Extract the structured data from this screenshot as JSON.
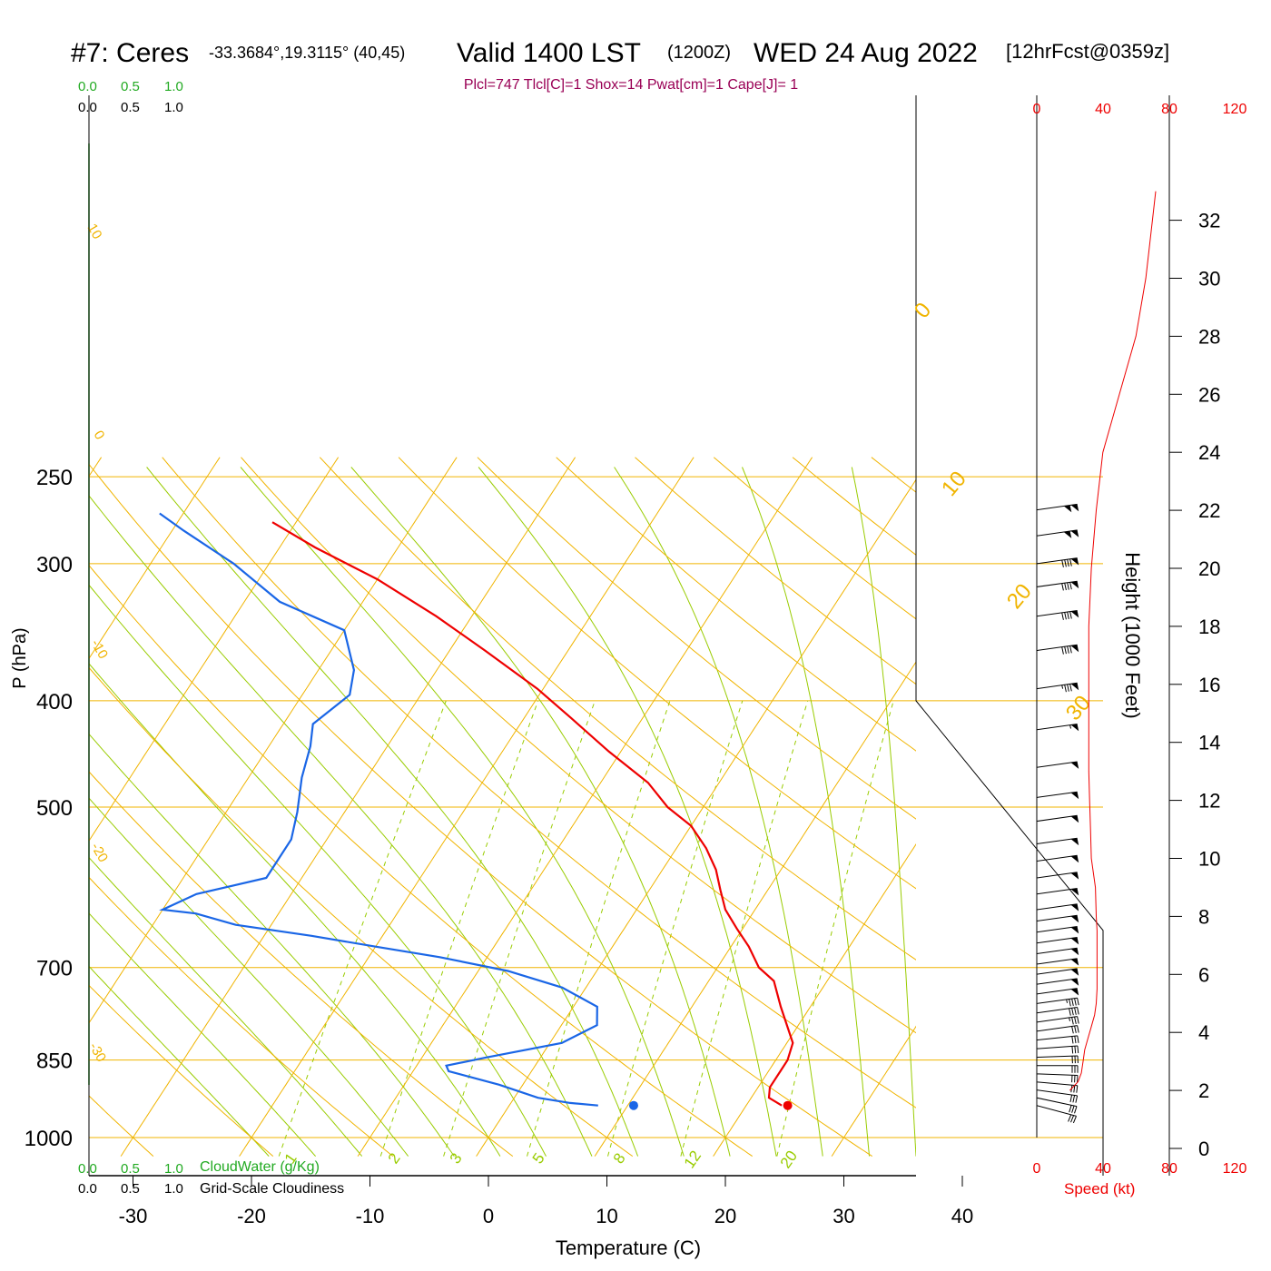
{
  "header": {
    "station": "#7: Ceres",
    "coords": "-33.3684°,19.3115° (40,45)",
    "valid": "Valid 1400 LST",
    "utc": "(1200Z)",
    "date": "WED 24 Aug 2022",
    "forecast": "[12hrFcst@0359z]",
    "indices": "Plcl=747 Tlcl[C]=1 Shox=14 Pwat[cm]=1 Cape[J]= 1"
  },
  "colors": {
    "isotherm": "#f0b400",
    "dry_adiabat": "#f0b400",
    "moist_adiabat": "#99cc00",
    "mixing_ratio": "#99cc00",
    "temperature": "#ee0000",
    "dewpoint": "#1a66e6",
    "cloud": "#22aa22",
    "indices": "#990055",
    "speed": "#ee0000"
  },
  "chart_data": {
    "type": "line",
    "title": "Skew-T log-P sounding",
    "xlabel": "Temperature (C)",
    "ylabel": "P (hPa)",
    "y2label": "Height (1000 Feet)",
    "x_ticks": [
      -30,
      -20,
      -10,
      0,
      10,
      20,
      30,
      40
    ],
    "pressure_ticks": [
      250,
      300,
      400,
      500,
      700,
      850,
      1000
    ],
    "height_ticks": [
      0,
      2,
      4,
      6,
      8,
      10,
      12,
      14,
      16,
      18,
      20,
      22,
      24,
      26,
      28,
      30,
      32
    ],
    "dry_adiabat_labels": [
      "10",
      "0",
      "-10",
      "-20",
      "-30"
    ],
    "theta_labels": [
      "0",
      "10",
      "20",
      "30"
    ],
    "mixing_ratio_labels": [
      "1",
      "2",
      "3",
      "5",
      "8",
      "12",
      "20"
    ],
    "cloud_scale_top_green": [
      "0.0",
      "0.5",
      "1.0"
    ],
    "cloud_scale_top_black": [
      "0.0",
      "0.5",
      "1.0"
    ],
    "cloud_scale_bottom_green": [
      "0.0",
      "0.5",
      "1.0"
    ],
    "cloud_scale_bottom_black": [
      "0.0",
      "0.5",
      "1.0"
    ],
    "cloudwater_label": "CloudWater (g/Kg)",
    "cloudiness_label": "Grid-Scale Cloudiness",
    "speed_ticks_top": [
      "0",
      "40",
      "80",
      "120"
    ],
    "speed_ticks_bottom": [
      "0",
      "40",
      "80",
      "120"
    ],
    "speed_label": "Speed (kt)",
    "series": [
      {
        "name": "temperature",
        "points": [
          [
            23.0,
            935
          ],
          [
            21.5,
            920
          ],
          [
            21.0,
            900
          ],
          [
            21.0,
            870
          ],
          [
            21.0,
            850
          ],
          [
            20.5,
            820
          ],
          [
            17.5,
            760
          ],
          [
            15.5,
            720
          ],
          [
            13.5,
            700
          ],
          [
            11.5,
            670
          ],
          [
            9.5,
            645
          ],
          [
            7.5,
            620
          ],
          [
            6.0,
            595
          ],
          [
            4.5,
            570
          ],
          [
            2.5,
            545
          ],
          [
            0.0,
            520
          ],
          [
            -3.0,
            500
          ],
          [
            -6.0,
            475
          ],
          [
            -11.0,
            445
          ],
          [
            -16.0,
            415
          ],
          [
            -20.5,
            390
          ],
          [
            -27.0,
            360
          ],
          [
            -33.0,
            335
          ],
          [
            -40.0,
            310
          ],
          [
            -47.0,
            290
          ],
          [
            -52.0,
            275
          ]
        ]
      },
      {
        "name": "dewpoint",
        "points": [
          [
            7.5,
            935
          ],
          [
            5.0,
            930
          ],
          [
            2.0,
            920
          ],
          [
            -2.0,
            895
          ],
          [
            -7.0,
            870
          ],
          [
            -7.5,
            860
          ],
          [
            -4.5,
            845
          ],
          [
            1.0,
            820
          ],
          [
            3.0,
            790
          ],
          [
            2.0,
            760
          ],
          [
            -2.0,
            730
          ],
          [
            -7.5,
            705
          ],
          [
            -14.0,
            685
          ],
          [
            -20.0,
            670
          ],
          [
            -26.0,
            655
          ],
          [
            -33.0,
            640
          ],
          [
            -37.0,
            625
          ],
          [
            -40.0,
            620
          ],
          [
            -38.0,
            600
          ],
          [
            -33.0,
            580
          ],
          [
            -33.0,
            560
          ],
          [
            -33.0,
            535
          ],
          [
            -34.0,
            505
          ],
          [
            -35.5,
            470
          ],
          [
            -36.5,
            440
          ],
          [
            -37.5,
            420
          ],
          [
            -36.0,
            395
          ],
          [
            -37.0,
            375
          ],
          [
            -40.0,
            345
          ],
          [
            -47.0,
            325
          ],
          [
            -53.0,
            300
          ],
          [
            -59.0,
            280
          ],
          [
            -62.0,
            270
          ]
        ]
      }
    ],
    "surface_temperature": 23.5,
    "surface_dewpoint": 10.5,
    "surface_pressure": 935,
    "wind_speed_profile_kt": [
      [
        2,
        20
      ],
      [
        2.3,
        25
      ],
      [
        2.6,
        27
      ],
      [
        3.0,
        28
      ],
      [
        3.4,
        29
      ],
      [
        3.8,
        31
      ],
      [
        4.2,
        33
      ],
      [
        4.6,
        35
      ],
      [
        5.0,
        36
      ],
      [
        5.5,
        36.5
      ],
      [
        6.0,
        36.5
      ],
      [
        6.5,
        36.5
      ],
      [
        7.0,
        36.5
      ],
      [
        7.5,
        36.5
      ],
      [
        8.0,
        36
      ],
      [
        9.0,
        35.5
      ],
      [
        10.0,
        33
      ],
      [
        11.0,
        32.5
      ],
      [
        12.0,
        32
      ],
      [
        13.0,
        31.5
      ],
      [
        14.0,
        31.5
      ],
      [
        16.0,
        31.5
      ],
      [
        18.0,
        31.5
      ],
      [
        20.0,
        33
      ],
      [
        22.0,
        36
      ],
      [
        24.0,
        40
      ],
      [
        26.0,
        50
      ],
      [
        28.0,
        60
      ],
      [
        30.0,
        66
      ],
      [
        32.0,
        70
      ],
      [
        33.0,
        72
      ]
    ],
    "wind_barbs": [
      {
        "p": 935,
        "dir": 285,
        "speed": 30
      },
      {
        "p": 920,
        "dir": 282,
        "speed": 30
      },
      {
        "p": 905,
        "dir": 278,
        "speed": 30
      },
      {
        "p": 890,
        "dir": 275,
        "speed": 30
      },
      {
        "p": 875,
        "dir": 272,
        "speed": 30
      },
      {
        "p": 860,
        "dir": 270,
        "speed": 30
      },
      {
        "p": 845,
        "dir": 268,
        "speed": 30
      },
      {
        "p": 830,
        "dir": 266,
        "speed": 30
      },
      {
        "p": 815,
        "dir": 264,
        "speed": 30
      },
      {
        "p": 800,
        "dir": 262,
        "speed": 30
      },
      {
        "p": 785,
        "dir": 262,
        "speed": 35
      },
      {
        "p": 770,
        "dir": 262,
        "speed": 40
      },
      {
        "p": 755,
        "dir": 262,
        "speed": 45
      },
      {
        "p": 740,
        "dir": 262,
        "speed": 50
      },
      {
        "p": 725,
        "dir": 262,
        "speed": 50
      },
      {
        "p": 710,
        "dir": 262,
        "speed": 50
      },
      {
        "p": 695,
        "dir": 262,
        "speed": 50
      },
      {
        "p": 680,
        "dir": 262,
        "speed": 50
      },
      {
        "p": 665,
        "dir": 262,
        "speed": 50
      },
      {
        "p": 650,
        "dir": 262,
        "speed": 50
      },
      {
        "p": 635,
        "dir": 262,
        "speed": 50
      },
      {
        "p": 620,
        "dir": 262,
        "speed": 50
      },
      {
        "p": 600,
        "dir": 262,
        "speed": 50
      },
      {
        "p": 580,
        "dir": 262,
        "speed": 50
      },
      {
        "p": 560,
        "dir": 262,
        "speed": 50
      },
      {
        "p": 540,
        "dir": 262,
        "speed": 50
      },
      {
        "p": 515,
        "dir": 262,
        "speed": 50
      },
      {
        "p": 490,
        "dir": 262,
        "speed": 50
      },
      {
        "p": 460,
        "dir": 262,
        "speed": 50
      },
      {
        "p": 425,
        "dir": 262,
        "speed": 55
      },
      {
        "p": 390,
        "dir": 262,
        "speed": 85
      },
      {
        "p": 360,
        "dir": 262,
        "speed": 90
      },
      {
        "p": 335,
        "dir": 262,
        "speed": 90
      },
      {
        "p": 315,
        "dir": 262,
        "speed": 90
      },
      {
        "p": 300,
        "dir": 262,
        "speed": 90
      },
      {
        "p": 283,
        "dir": 262,
        "speed": 100
      },
      {
        "p": 268,
        "dir": 262,
        "speed": 100
      }
    ]
  }
}
